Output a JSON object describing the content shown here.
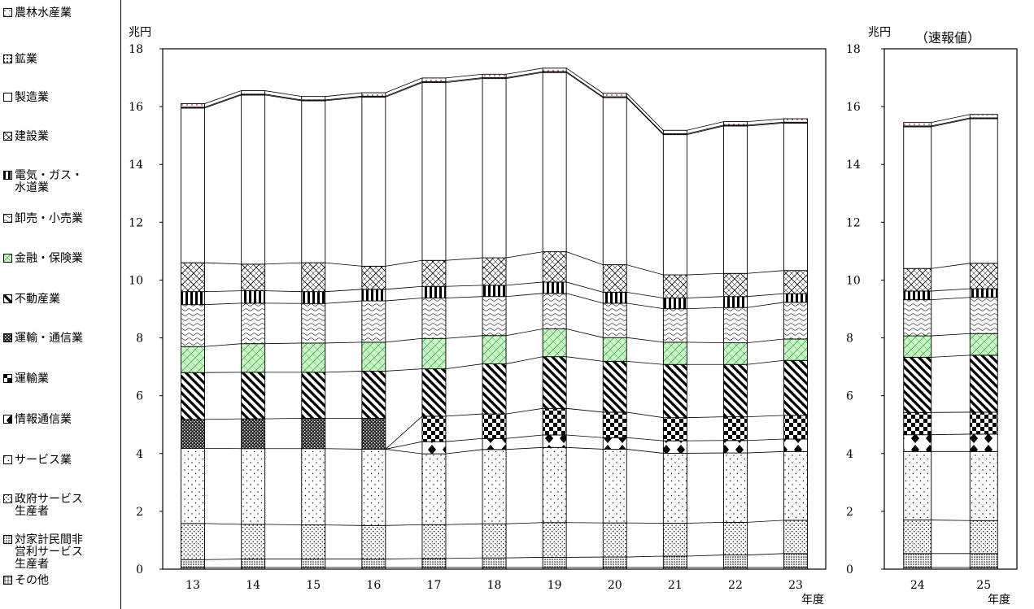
{
  "legend": [
    {
      "label": "農林水産業",
      "pattern": "agri"
    },
    {
      "label": "鉱業",
      "pattern": "mining"
    },
    {
      "label": "製造業",
      "pattern": "manuf"
    },
    {
      "label": "建設業",
      "pattern": "constr"
    },
    {
      "label": "電気・ガス・\n水道業",
      "pattern": "elec"
    },
    {
      "label": "卸売・小売業",
      "pattern": "trade"
    },
    {
      "label": "金融・保険業",
      "pattern": "fin"
    },
    {
      "label": "不動産業",
      "pattern": "realestate"
    },
    {
      "label": "運輸・通信業",
      "pattern": "transcomm"
    },
    {
      "label": "運輸業",
      "pattern": "transport"
    },
    {
      "label": "情報通信業",
      "pattern": "info"
    },
    {
      "label": "サービス業",
      "pattern": "service"
    },
    {
      "label": "政府サービス\n生産者",
      "pattern": "gov"
    },
    {
      "label": "対家計民間非\n営利サービス\n生産者",
      "pattern": "npo"
    },
    {
      "label": "その他",
      "pattern": "other"
    }
  ],
  "chart_data": [
    {
      "type": "bar",
      "stacked": true,
      "unit": "兆円",
      "xlabel": "年度",
      "ylim": [
        0,
        18
      ],
      "yticks": [
        "0",
        "2",
        "4",
        "6",
        "8",
        "10",
        "12",
        "14",
        "16",
        "18"
      ],
      "categories": [
        "13",
        "14",
        "15",
        "16",
        "17",
        "18",
        "19",
        "20",
        "21",
        "22",
        "23"
      ],
      "series": [
        {
          "name": "その他",
          "pattern": "other",
          "values": [
            0.06,
            0.06,
            0.06,
            0.06,
            0.06,
            0.06,
            0.06,
            0.06,
            0.06,
            0.06,
            0.06
          ]
        },
        {
          "name": "対家計民間非営利サービス生産者",
          "pattern": "npo",
          "values": [
            0.27,
            0.29,
            0.29,
            0.29,
            0.31,
            0.33,
            0.35,
            0.36,
            0.39,
            0.43,
            0.48
          ]
        },
        {
          "name": "政府サービス生産者",
          "pattern": "gov",
          "values": [
            1.25,
            1.2,
            1.18,
            1.16,
            1.17,
            1.18,
            1.2,
            1.18,
            1.14,
            1.13,
            1.15
          ]
        },
        {
          "name": "サービス業",
          "pattern": "service",
          "values": [
            2.6,
            2.62,
            2.64,
            2.64,
            2.45,
            2.57,
            2.6,
            2.55,
            2.42,
            2.4,
            2.38
          ]
        },
        {
          "name": "情報通信業",
          "pattern": "info",
          "values": [
            null,
            null,
            null,
            null,
            0.42,
            0.38,
            0.43,
            0.4,
            0.43,
            0.43,
            0.43
          ]
        },
        {
          "name": "運輸業",
          "pattern": "transport",
          "values": [
            null,
            null,
            null,
            null,
            0.88,
            0.85,
            0.92,
            0.88,
            0.8,
            0.82,
            0.82
          ]
        },
        {
          "name": "運輸・通信業",
          "pattern": "transcomm",
          "values": [
            1.0,
            1.03,
            1.05,
            1.07,
            null,
            null,
            null,
            null,
            null,
            null,
            null
          ]
        },
        {
          "name": "不動産業",
          "pattern": "realestate",
          "values": [
            1.62,
            1.61,
            1.59,
            1.63,
            1.64,
            1.73,
            1.79,
            1.76,
            1.84,
            1.81,
            1.9
          ]
        },
        {
          "name": "金融・保険業",
          "pattern": "fin",
          "values": [
            0.9,
            0.99,
            1.01,
            1.0,
            1.05,
            0.98,
            0.96,
            0.82,
            0.77,
            0.75,
            0.74
          ]
        },
        {
          "name": "卸売・小売業",
          "pattern": "trade",
          "values": [
            1.45,
            1.4,
            1.37,
            1.43,
            1.4,
            1.35,
            1.23,
            1.19,
            1.16,
            1.22,
            1.27
          ]
        },
        {
          "name": "電気・ガス・水道業",
          "pattern": "elec",
          "values": [
            0.45,
            0.43,
            0.41,
            0.4,
            0.4,
            0.39,
            0.39,
            0.38,
            0.37,
            0.38,
            0.3
          ]
        },
        {
          "name": "建設業",
          "pattern": "constr",
          "values": [
            1.0,
            0.92,
            1.0,
            0.8,
            0.9,
            0.95,
            1.05,
            0.95,
            0.8,
            0.8,
            0.8
          ]
        },
        {
          "name": "製造業",
          "pattern": "manuf",
          "values": [
            5.35,
            5.85,
            5.6,
            5.85,
            6.15,
            6.2,
            6.2,
            5.78,
            4.85,
            5.1,
            5.1
          ]
        },
        {
          "name": "鉱業",
          "pattern": "mining",
          "values": [
            0.03,
            0.03,
            0.03,
            0.03,
            0.03,
            0.03,
            0.03,
            0.03,
            0.03,
            0.03,
            0.03
          ]
        },
        {
          "name": "農林水産業",
          "pattern": "agri",
          "values": [
            0.12,
            0.12,
            0.12,
            0.12,
            0.13,
            0.12,
            0.12,
            0.12,
            0.12,
            0.12,
            0.12
          ]
        }
      ]
    },
    {
      "type": "bar",
      "stacked": true,
      "unit": "兆円",
      "title": "（速報値）",
      "xlabel": "年度",
      "ylim": [
        0,
        18
      ],
      "yticks": [
        "0",
        "2",
        "4",
        "6",
        "8",
        "10",
        "12",
        "14",
        "16",
        "18"
      ],
      "categories": [
        "24",
        "25"
      ],
      "series": [
        {
          "name": "その他",
          "pattern": "other",
          "values": [
            0.06,
            0.06
          ]
        },
        {
          "name": "対家計民間非営利サービス生産者",
          "pattern": "npo",
          "values": [
            0.48,
            0.48
          ]
        },
        {
          "name": "政府サービス生産者",
          "pattern": "gov",
          "values": [
            1.16,
            1.14
          ]
        },
        {
          "name": "サービス業",
          "pattern": "service",
          "values": [
            2.37,
            2.39
          ]
        },
        {
          "name": "情報通信業",
          "pattern": "info",
          "values": [
            0.58,
            0.6
          ]
        },
        {
          "name": "運輸業",
          "pattern": "transport",
          "values": [
            0.77,
            0.76
          ]
        },
        {
          "name": "不動産業",
          "pattern": "realestate",
          "values": [
            1.91,
            1.97
          ]
        },
        {
          "name": "金融・保険業",
          "pattern": "fin",
          "values": [
            0.74,
            0.75
          ]
        },
        {
          "name": "卸売・小売業",
          "pattern": "trade",
          "values": [
            1.25,
            1.25
          ]
        },
        {
          "name": "電気・ガス・水道業",
          "pattern": "elec",
          "values": [
            0.3,
            0.3
          ]
        },
        {
          "name": "建設業",
          "pattern": "constr",
          "values": [
            0.78,
            0.88
          ]
        },
        {
          "name": "製造業",
          "pattern": "manuf",
          "values": [
            4.9,
            5.0
          ]
        },
        {
          "name": "鉱業",
          "pattern": "mining",
          "values": [
            0.03,
            0.03
          ]
        },
        {
          "name": "農林水産業",
          "pattern": "agri",
          "values": [
            0.12,
            0.12
          ]
        }
      ]
    }
  ]
}
